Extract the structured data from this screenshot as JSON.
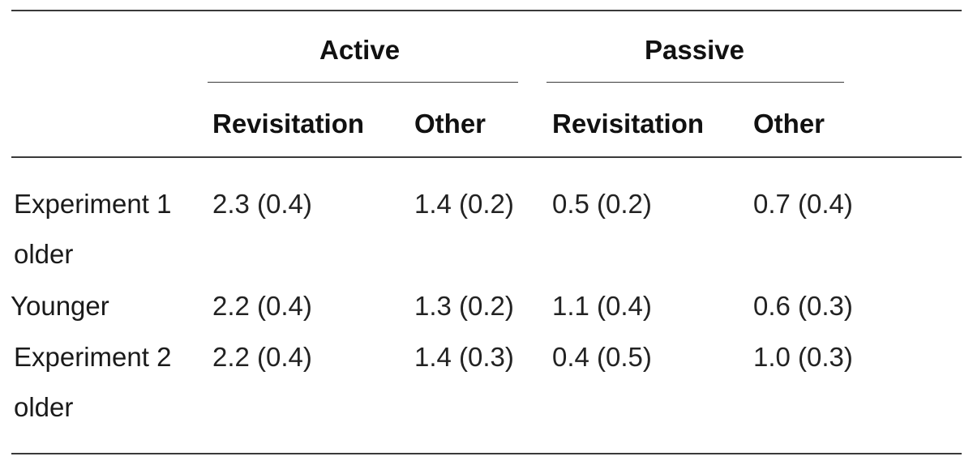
{
  "table": {
    "group_headers": {
      "active": "Active",
      "passive": "Passive"
    },
    "sub_headers": [
      "Revisitation",
      "Other",
      "Revisitation",
      "Other"
    ],
    "rows": [
      {
        "label": [
          "Experiment 1",
          "older"
        ],
        "values": [
          "2.3 (0.4)",
          "1.4 (0.2)",
          "0.5 (0.2)",
          "0.7 (0.4)"
        ]
      },
      {
        "label": [
          "Younger"
        ],
        "values": [
          "2.2 (0.4)",
          "1.3 (0.2)",
          "1.1 (0.4)",
          "0.6 (0.3)"
        ]
      },
      {
        "label": [
          "Experiment 2",
          "older"
        ],
        "values": [
          "2.2 (0.4)",
          "1.4 (0.3)",
          "0.4 (0.5)",
          "1.0 (0.3)"
        ]
      }
    ]
  }
}
